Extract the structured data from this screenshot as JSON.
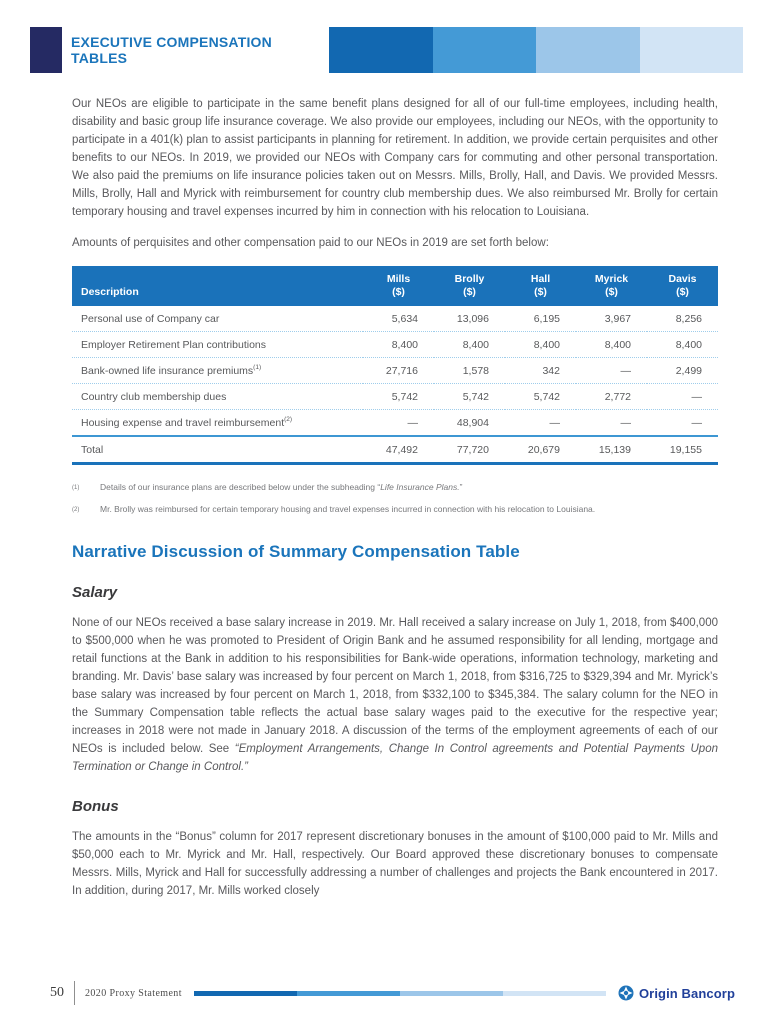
{
  "header": {
    "title_line1": "EXECUTIVE COMPENSATION",
    "title_line2": "TABLES"
  },
  "paragraphs": {
    "intro": "Our NEOs are eligible to participate in the same benefit plans designed for all of our full-time employees, including health, disability and basic group life insurance coverage. We also provide our employees, including our NEOs, with the opportunity to participate in a 401(k) plan to assist participants in planning for retirement. In addition, we provide certain perquisites and other benefits to our NEOs. In 2019, we provided our NEOs with Company cars for commuting and other personal transportation. We also paid the premiums on life insurance policies taken out on Messrs. Mills, Brolly, Hall, and Davis. We provided Messrs. Mills, Brolly, Hall and Myrick with reimbursement for country club membership dues. We also reimbursed Mr. Brolly for certain temporary housing and travel expenses incurred by him in connection with his relocation to Louisiana.",
    "table_intro": "Amounts of perquisites and other compensation paid to our NEOs in 2019 are set forth below:"
  },
  "comp_table": {
    "description_label": "Description",
    "unit": "($)",
    "names": [
      "Mills",
      "Brolly",
      "Hall",
      "Myrick",
      "Davis"
    ],
    "rows": [
      {
        "label": "Personal use of Company car",
        "sup": "",
        "values": [
          "5,634",
          "13,096",
          "6,195",
          "3,967",
          "8,256"
        ]
      },
      {
        "label": "Employer Retirement Plan contributions",
        "sup": "",
        "values": [
          "8,400",
          "8,400",
          "8,400",
          "8,400",
          "8,400"
        ]
      },
      {
        "label": "Bank-owned life insurance premiums",
        "sup": "(1)",
        "values": [
          "27,716",
          "1,578",
          "342",
          "—",
          "2,499"
        ]
      },
      {
        "label": "Country club membership dues",
        "sup": "",
        "values": [
          "5,742",
          "5,742",
          "5,742",
          "2,772",
          "—"
        ]
      },
      {
        "label": "Housing expense and travel reimbursement",
        "sup": "(2)",
        "values": [
          "—",
          "48,904",
          "—",
          "—",
          "—"
        ]
      }
    ],
    "total": {
      "label": "Total",
      "values": [
        "47,492",
        "77,720",
        "20,679",
        "15,139",
        "19,155"
      ]
    }
  },
  "footnotes": {
    "fn1": {
      "marker": "(1)",
      "before": "Details of our insurance plans are described below under the subheading “",
      "italic": "Life Insurance Plans.",
      "after": "”"
    },
    "fn2": {
      "marker": "(2)",
      "text": "Mr. Brolly was reimbursed for certain temporary housing and travel expenses incurred in connection with his relocation to Louisiana."
    }
  },
  "sections": {
    "narrative_heading": "Narrative Discussion of Summary Compensation Table",
    "salary_heading": "Salary",
    "salary_text_main": "None of our NEOs received a base salary increase in 2019. Mr. Hall received a salary increase on July 1, 2018, from $400,000 to $500,000 when he was promoted to President of Origin Bank and he assumed responsibility for all lending, mortgage and retail functions at the Bank in addition to his responsibilities for Bank-wide operations, information technology, marketing and branding. Mr. Davis’ base salary was increased by four percent on March 1, 2018, from $316,725 to $329,394 and Mr. Myrick’s base salary was increased by four percent on March 1, 2018, from $332,100 to $345,384. The salary column for the NEO in the Summary Compensation table reflects the actual base salary wages paid to the executive for the respective year; increases in 2018 were not made in January 2018. A discussion of the terms of the employment agreements of each of our NEOs is included below. See ",
    "salary_text_italic": "“Employment Arrangements, Change In Control agreements and Potential Payments Upon Termination or Change in Control.”",
    "bonus_heading": "Bonus",
    "bonus_text": "The amounts in the “Bonus” column for 2017 represent discretionary bonuses in the amount of $100,000 paid to Mr. Mills and $50,000 each to Mr. Myrick and Mr. Hall, respectively. Our Board approved these discretionary bonuses to compensate Messrs. Mills, Myrick and Hall for successfully addressing a number of challenges and projects the Bank encountered in 2017. In addition, during 2017, Mr. Mills worked closely"
  },
  "footer": {
    "page_number": "50",
    "doc_title": "2020 Proxy Statement",
    "logo_text": "Origin Bancorp"
  },
  "colors": {
    "accent_blue": "#1b75bb",
    "navy_square": "#252a63",
    "table_header_bg": "#1a72ba",
    "band": [
      "#1268b1",
      "#449ad6",
      "#9cc6e9",
      "#d2e4f5"
    ],
    "dotted_line": "#9fcdeb",
    "total_top_border": "#3d97d3",
    "body_text": "#59595c",
    "footnote_text": "#77787b",
    "logo_circle": "#1e73b9",
    "logo_text_color": "#21409a"
  }
}
